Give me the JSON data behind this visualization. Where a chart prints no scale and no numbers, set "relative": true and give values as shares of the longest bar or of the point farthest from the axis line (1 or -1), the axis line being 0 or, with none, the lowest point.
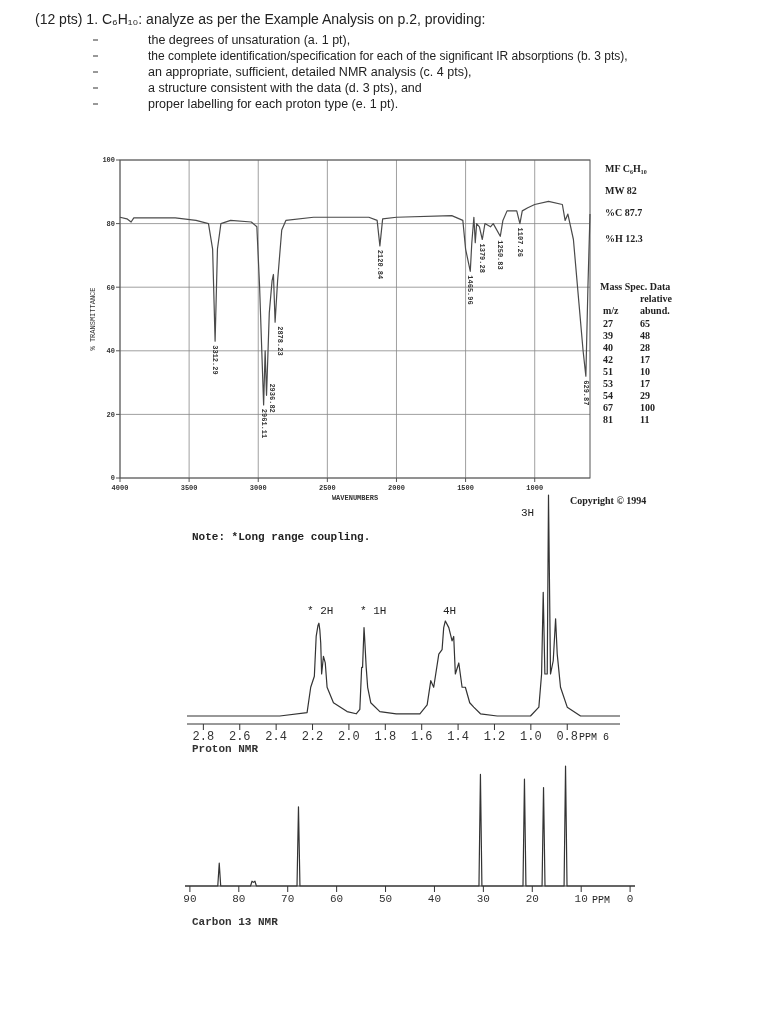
{
  "chart_data": [
    {
      "type": "line",
      "title": "(12 pts) 1. C₆H₁₀: analyze as per the Example Analysis on p.2, providing:",
      "xlabel": "WAVENUMBERS",
      "ylabel": "% TRANSMITTANCE",
      "xlim": [
        4000,
        600
      ],
      "xticks": [
        4000,
        3500,
        3000,
        2500,
        2000,
        1500,
        1000
      ],
      "ylim": [
        0,
        100
      ],
      "yticks": [
        0,
        20,
        40,
        60,
        80,
        100
      ],
      "grid": true,
      "series": [
        {
          "color": "#4a4a4a",
          "x": [
            4000,
            3950,
            3920,
            3900,
            3600,
            3450,
            3360,
            3330,
            3312,
            3295,
            3270,
            3200,
            3050,
            3010,
            2990,
            2961,
            2950,
            2940,
            2936,
            2920,
            2900,
            2890,
            2878,
            2860,
            2830,
            2800,
            2600,
            2200,
            2140,
            2120,
            2100,
            2000,
            1600,
            1520,
            1500,
            1466,
            1455,
            1440,
            1430,
            1420,
            1400,
            1379,
            1360,
            1320,
            1300,
            1249,
            1230,
            1200,
            1130,
            1107,
            1090,
            1050,
            1000,
            900,
            800,
            780,
            760,
            720,
            680,
            650,
            630,
            615,
            600
          ],
          "values": [
            82,
            81.5,
            80.5,
            81.8,
            81.8,
            81,
            80,
            72,
            43,
            72,
            80,
            81,
            80.5,
            79,
            60,
            23,
            40,
            26,
            31,
            52,
            62,
            64,
            49,
            62,
            78,
            81,
            82,
            82,
            81,
            73,
            81.5,
            82,
            82.5,
            81,
            72,
            65,
            74,
            82,
            74,
            80,
            79,
            75,
            80,
            79,
            80,
            76,
            81,
            84,
            84,
            80,
            84,
            85,
            86,
            87,
            86,
            81,
            83,
            75,
            55,
            40,
            32,
            60,
            83
          ]
        }
      ],
      "annotations": [
        "the degrees of unsaturation (a. 1 pt),",
        "the complete identification/specification for each of the significant IR absorptions (b. 3 pts),",
        "an appropriate, sufficient, detailed NMR analysis (c. 4 pts),",
        "a structure consistent with the data (d. 3 pts), and",
        "proper labelling for each proton type (e. 1 pt).",
        "MF C₆H₁₀",
        "MW 82",
        "%C 87.7",
        "%H 12.3",
        "Copyright © 1994",
        {
          "text": "3312.29",
          "x": 3312.29,
          "y": 43
        },
        {
          "text": "2961.11",
          "x": 2961.11,
          "y": 23
        },
        {
          "text": "2936.82",
          "x": 2936.82,
          "y": 31
        },
        {
          "text": "2878.23",
          "x": 2878.23,
          "y": 49
        },
        {
          "text": "2120.84",
          "x": 2120.84,
          "y": 73
        },
        {
          "text": "1465.96",
          "x": 1465.96,
          "y": 65
        },
        {
          "text": "1379.28",
          "x": 1379.28,
          "y": 75
        },
        {
          "text": "1250.83",
          "x": 1250.83,
          "y": 76
        },
        {
          "text": "1107.26",
          "x": 1107.26,
          "y": 80
        },
        {
          "text": "629.87",
          "x": 629.87,
          "y": 32
        }
      ]
    },
    {
      "type": "other",
      "title": "Mass Spec. Data",
      "xlabel": "m/z",
      "ylabel": "relative abund.",
      "categories": [
        "27",
        "39",
        "40",
        "42",
        "51",
        "53",
        "54",
        "67",
        "81"
      ],
      "values": [
        65,
        48,
        28,
        17,
        10,
        17,
        29,
        100,
        11
      ],
      "data_labels": true
    },
    {
      "type": "line",
      "relative": true,
      "xlabel": "Proton NMR",
      "xlim": [
        2.89,
        0.51
      ],
      "xticks": [
        2.8,
        2.6,
        2.4,
        2.2,
        {
          "value": 2,
          "label": "2.0"
        },
        1.8,
        1.6,
        1.4,
        1.2,
        {
          "value": 1,
          "label": "1.0"
        },
        0.8
      ],
      "series": [
        {
          "color": "#333333",
          "x": [
            2.89,
            2.38,
            2.23,
            2.21,
            2.19,
            2.18,
            2.17,
            2.165,
            2.16,
            2.155,
            2.15,
            2.14,
            2.13,
            2.12,
            2.085,
            2.01,
            1.96,
            1.94,
            1.93,
            1.925,
            1.917,
            1.914,
            1.905,
            1.897,
            1.88,
            1.83,
            1.74,
            1.61,
            1.57,
            1.55,
            1.534,
            1.506,
            1.488,
            1.479,
            1.47,
            1.451,
            1.433,
            1.424,
            1.415,
            1.396,
            1.378,
            1.36,
            1.336,
            1.314,
            1.277,
            1.185,
            1.002,
            0.956,
            0.941,
            0.932,
            0.923,
            0.91,
            0.903,
            0.892,
            0.877,
            0.864,
            0.855,
            0.837,
            0.8,
            0.727,
            0.51
          ],
          "values": [
            0,
            0,
            0.015,
            0.13,
            0.18,
            0.36,
            0.41,
            0.42,
            0.39,
            0.33,
            0.19,
            0.27,
            0.24,
            0.13,
            0.06,
            0.02,
            0.01,
            0.03,
            0.22,
            0.22,
            0.4,
            0.36,
            0.22,
            0.13,
            0.06,
            0.02,
            0.01,
            0.01,
            0.05,
            0.16,
            0.13,
            0.28,
            0.3,
            0.4,
            0.43,
            0.4,
            0.34,
            0.36,
            0.19,
            0.24,
            0.13,
            0.13,
            0.06,
            0.04,
            0.01,
            0,
            0,
            0.04,
            0.19,
            0.56,
            0.19,
            0.19,
            1,
            0.19,
            0.25,
            0.44,
            0.28,
            0.13,
            0.04,
            0,
            0
          ]
        }
      ],
      "annotations": [
        "Note: *Long range coupling.",
        "PPM 6",
        "* 2H",
        "* 1H",
        "4H",
        "3H"
      ]
    },
    {
      "type": "line",
      "relative": true,
      "xlabel": "Carbon 13 NMR",
      "xlim": [
        91,
        -1
      ],
      "xticks": [
        90,
        80,
        70,
        60,
        50,
        40,
        30,
        20,
        10,
        0
      ],
      "series": [
        {
          "color": "#333333",
          "x": [
            91,
            84.3,
            84,
            83.7,
            77.6,
            77.3,
            77,
            76.7,
            76.4,
            68.1,
            67.8,
            67.5,
            30.9,
            30.6,
            30.3,
            21.9,
            21.6,
            21.3,
            18,
            17.7,
            17.4,
            13.5,
            13.2,
            12.9,
            -1
          ],
          "values": [
            0,
            0,
            0.19,
            0,
            0,
            0.04,
            0.03,
            0.04,
            0,
            0,
            0.66,
            0,
            0,
            0.93,
            0,
            0,
            0.89,
            0,
            0,
            0.82,
            0,
            0,
            1,
            0,
            0
          ]
        }
      ],
      "annotations": [
        "PPM"
      ]
    }
  ]
}
